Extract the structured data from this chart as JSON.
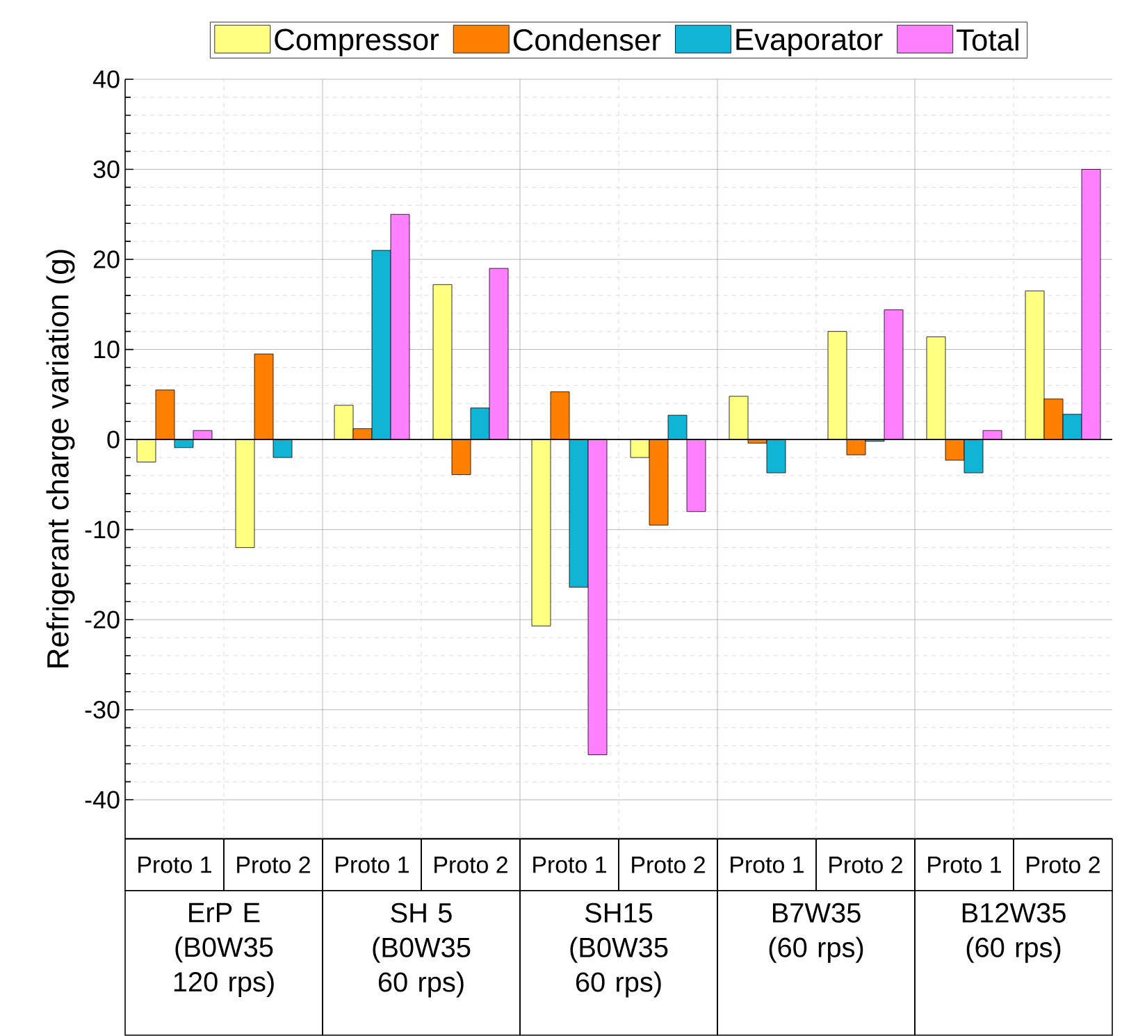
{
  "chart_data": {
    "type": "bar",
    "categories": [
      "Proto 1",
      "Proto 2",
      "Proto 1",
      "Proto 2",
      "Proto 1",
      "Proto 2",
      "Proto 1",
      "Proto 2",
      "Proto 1",
      "Proto 2"
    ],
    "series": [
      {
        "name": "Compressor",
        "color": "#ffff80",
        "values": [
          -2.5,
          -12,
          3.8,
          17.2,
          -20.7,
          -2,
          4.8,
          12,
          11.4,
          16.5
        ]
      },
      {
        "name": "Condenser",
        "color": "#ff8000",
        "values": [
          5.5,
          9.5,
          1.2,
          -3.9,
          5.3,
          -9.5,
          -0.4,
          -1.7,
          -2.3,
          4.5
        ]
      },
      {
        "name": "Evaporator",
        "color": "#10b4d4",
        "values": [
          -0.9,
          -2,
          21,
          3.5,
          -16.4,
          2.7,
          -3.7,
          -0.2,
          -3.7,
          2.8
        ]
      },
      {
        "name": "Total",
        "color": "#ff80ff",
        "values": [
          1,
          null,
          25,
          19,
          -35,
          -8,
          null,
          14.4,
          1,
          30
        ]
      }
    ],
    "ylabel": "Refrigerant charge variation (g)",
    "ylim": [
      -44.3,
      40
    ],
    "yticks": [
      -40,
      -30,
      -20,
      -10,
      0,
      10,
      20,
      30,
      40
    ],
    "annotations": [
      "ErP E (B0W35 120 rps)",
      "SH 5 (B0W35 60 rps)",
      "SH15 (B0W35 60 rps)",
      "B7W35 (60 rps)",
      "B12W35 (60 rps)"
    ],
    "grid": true,
    "legend": "top"
  }
}
